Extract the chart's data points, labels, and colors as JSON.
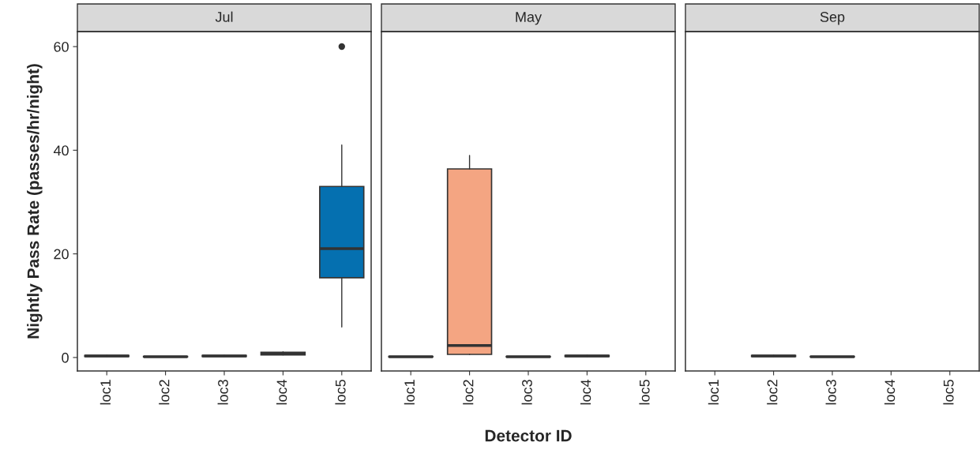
{
  "chart_data": [
    {
      "type": "box",
      "title": "Jul",
      "ylabel": "Nightly Pass Rate (passes/hr/night)",
      "categories": [
        "loc1",
        "loc2",
        "loc3",
        "loc4",
        "loc5"
      ],
      "ylim": [
        -2.6,
        62.9
      ],
      "yticks": [
        0,
        20,
        40,
        60
      ],
      "grid": false,
      "boxes": [
        {
          "low": 0.2,
          "q1": 0.2,
          "median": 0.3,
          "q3": 0.4,
          "high": 0.4
        },
        {
          "low": 0.1,
          "q1": 0.1,
          "median": 0.15,
          "q3": 0.2,
          "high": 0.2
        },
        {
          "low": 0.2,
          "q1": 0.2,
          "median": 0.3,
          "q3": 0.4,
          "high": 0.4
        },
        {
          "low": 0.5,
          "q1": 0.5,
          "median": 0.7,
          "q3": 1.0,
          "high": 1.1
        },
        {
          "low": 5.9,
          "q1": 15.4,
          "median": 21,
          "q3": 33,
          "high": 41,
          "outliers": [
            60
          ]
        }
      ],
      "colors": [
        null,
        null,
        null,
        null,
        "#0570b0"
      ]
    },
    {
      "type": "box",
      "title": "May",
      "xlabel": "Detector ID",
      "categories": [
        "loc1",
        "loc2",
        "loc3",
        "loc4",
        "loc5"
      ],
      "ylim": [
        -2.6,
        62.9
      ],
      "yticks": [
        0,
        20,
        40,
        60
      ],
      "grid": false,
      "tick_labels": "x",
      "boxes": [
        {
          "low": 0.1,
          "q1": 0.1,
          "median": 0.15,
          "q3": 0.2,
          "high": 0.2
        },
        {
          "low": 0.6,
          "q1": 0.6,
          "median": 2.3,
          "q3": 36.4,
          "high": 39
        },
        {
          "low": 0.1,
          "q1": 0.1,
          "median": 0.15,
          "q3": 0.2,
          "high": 0.2
        },
        {
          "low": 0.2,
          "q1": 0.2,
          "median": 0.3,
          "q3": 0.4,
          "high": 0.4
        },
        null
      ],
      "colors": [
        null,
        "#f4a582",
        null,
        null,
        null
      ]
    },
    {
      "type": "box",
      "title": "Sep",
      "categories": [
        "loc1",
        "loc2",
        "loc3",
        "loc4",
        "loc5"
      ],
      "ylim": [
        -2.6,
        62.9
      ],
      "yticks": [
        0,
        20,
        40,
        60
      ],
      "grid": false,
      "tick_labels": "x",
      "boxes": [
        null,
        {
          "low": 0.2,
          "q1": 0.2,
          "median": 0.3,
          "q3": 0.4,
          "high": 0.4
        },
        {
          "low": 0.1,
          "q1": 0.1,
          "median": 0.15,
          "q3": 0.2,
          "high": 0.2
        },
        null,
        null
      ],
      "colors": [
        null,
        null,
        null,
        null,
        null
      ]
    }
  ]
}
